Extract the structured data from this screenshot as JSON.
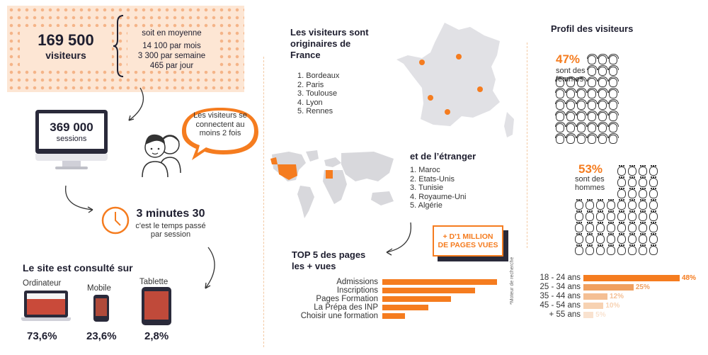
{
  "visitors": {
    "count": "169 500",
    "label": "visiteurs",
    "avg_title": "soit en moyenne",
    "per_month": "14 100 par mois",
    "per_week": "3 300 par semaine",
    "per_day": "465 par jour"
  },
  "sessions": {
    "count": "369 000",
    "label": "sessions"
  },
  "speech": {
    "text": "Les visiteurs se connectent au moins 2 fois"
  },
  "time": {
    "value": "3 minutes 30",
    "caption": "c'est le temps passé par session"
  },
  "devices": {
    "title": "Le site est consulté sur",
    "items": [
      {
        "label": "Ordinateur",
        "value": "73,6%"
      },
      {
        "label": "Mobile",
        "value": "23,6%"
      },
      {
        "label": "Tablette",
        "value": "2,8%"
      }
    ]
  },
  "france": {
    "title": "Les visiteurs sont originaires de France",
    "cities": [
      "1. Bordeaux",
      "2. Paris",
      "3. Toulouse",
      "4. Lyon",
      "5. Rennes"
    ]
  },
  "abroad": {
    "title": "et de l’étranger",
    "countries": [
      "1. Maroc",
      "2. Etats-Unis",
      "3. Tunisie",
      "4. Royaume-Uni",
      "5. Algérie"
    ]
  },
  "million_badge": {
    "line1": "+ D'1 MILLION",
    "line2": "DE PAGES VUES"
  },
  "top_pages": {
    "title_line1": "TOP 5 des pages",
    "title_line2": "les + vues"
  },
  "chart_data": [
    {
      "type": "bar",
      "categories": [
        "Admissions",
        "Inscriptions",
        "Pages Formation",
        "La Prépa des INP",
        "Choisir une formation"
      ],
      "values": [
        100,
        81,
        60,
        40,
        20
      ],
      "orientation": "horizontal",
      "color": "#f57c1f"
    },
    {
      "type": "bar",
      "categories": [
        "18 - 24 ans",
        "25 - 34 ans",
        "35 - 44 ans",
        "45 - 54 ans",
        "+ 55 ans"
      ],
      "values": [
        48,
        25,
        12,
        10,
        5
      ],
      "value_labels": [
        "48%",
        "25%",
        "12%",
        "10%",
        "5%"
      ],
      "orientation": "horizontal",
      "colors": [
        "#f57c1f",
        "#f0a060",
        "#f4bf94",
        "#f7d2b2",
        "#f9e2cf"
      ]
    }
  ],
  "profile": {
    "title": "Profil des visiteurs",
    "women_pct": "47%",
    "women_label": "sont des femmes",
    "men_pct": "53%",
    "men_label": "sont des hommes",
    "footnote": "*Moteur de recherche"
  },
  "colors": {
    "accent": "#f57c1f",
    "dark": "#1e1e2f"
  }
}
